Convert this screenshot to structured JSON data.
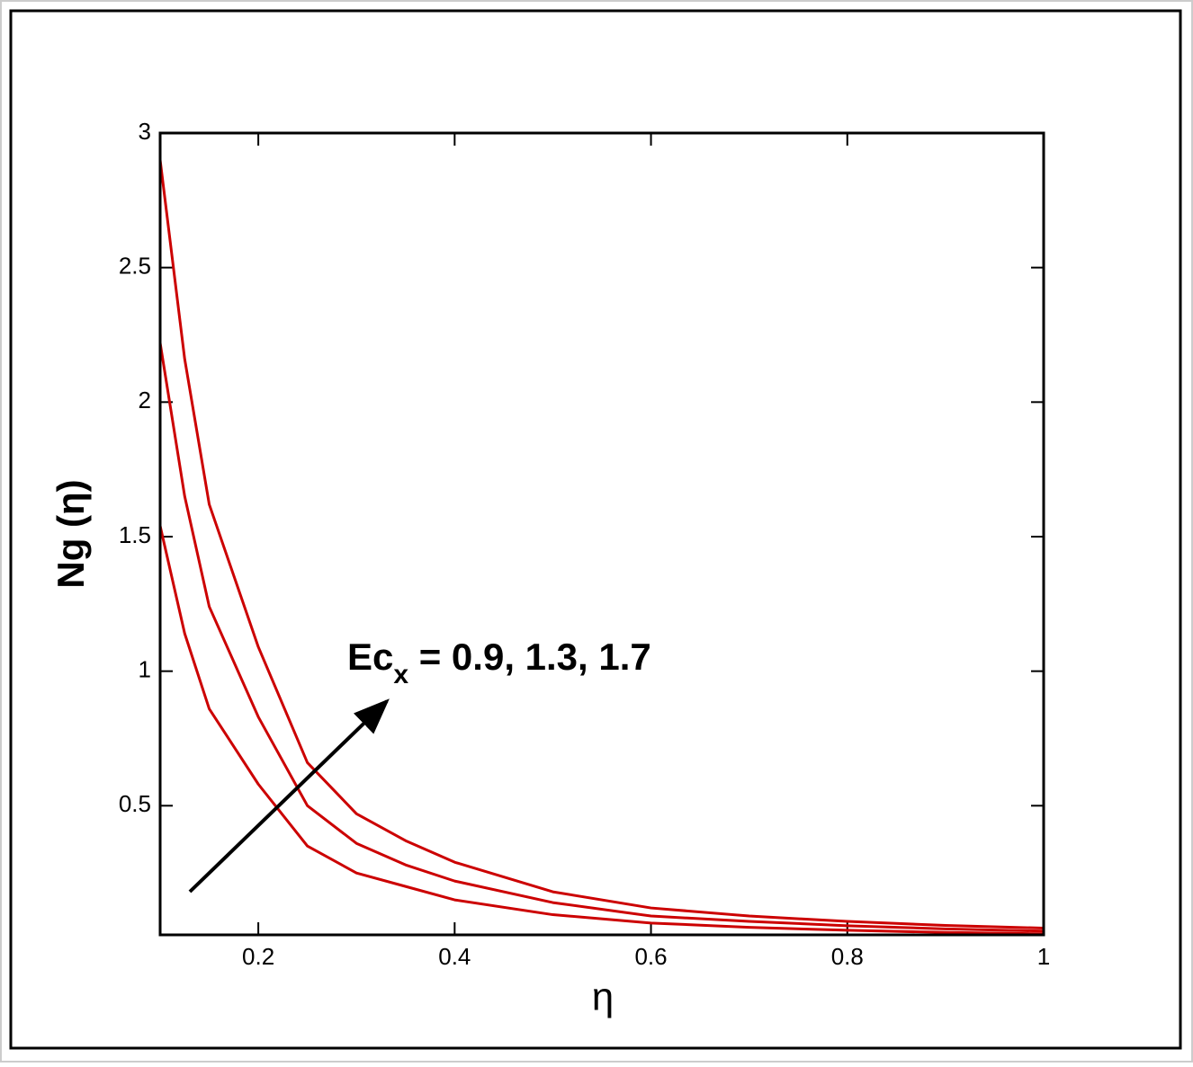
{
  "chart_data": {
    "type": "line",
    "xlabel": "η",
    "ylabel": "Ng (η)",
    "annotation": {
      "main": "Ec",
      "sub": "x",
      "rest": " = 0.9, 1.3, 1.7"
    },
    "x": [
      0.1,
      0.125,
      0.15,
      0.2,
      0.25,
      0.3,
      0.35,
      0.4,
      0.5,
      0.6,
      0.7,
      0.8,
      0.9,
      1
    ],
    "series": [
      {
        "color": "#cc0000",
        "values": [
          1.54,
          1.14,
          0.86,
          0.58,
          0.35,
          0.25,
          0.2,
          0.15,
          0.095,
          0.064,
          0.048,
          0.037,
          0.029,
          0.024
        ]
      },
      {
        "color": "#cc0000",
        "values": [
          2.22,
          1.65,
          1.24,
          0.83,
          0.5,
          0.36,
          0.28,
          0.22,
          0.14,
          0.09,
          0.07,
          0.054,
          0.042,
          0.034
        ]
      },
      {
        "color": "#cc0000",
        "values": [
          2.9,
          2.16,
          1.62,
          1.09,
          0.66,
          0.47,
          0.37,
          0.29,
          0.18,
          0.12,
          0.09,
          0.07,
          0.055,
          0.045
        ]
      }
    ],
    "xlim": [
      0.1,
      1
    ],
    "ylim": [
      0.02,
      3
    ],
    "xticks": [
      0.2,
      0.4,
      0.6,
      0.8,
      1
    ],
    "yticks": [
      0.5,
      1,
      1.5,
      2,
      2.5,
      3
    ]
  }
}
